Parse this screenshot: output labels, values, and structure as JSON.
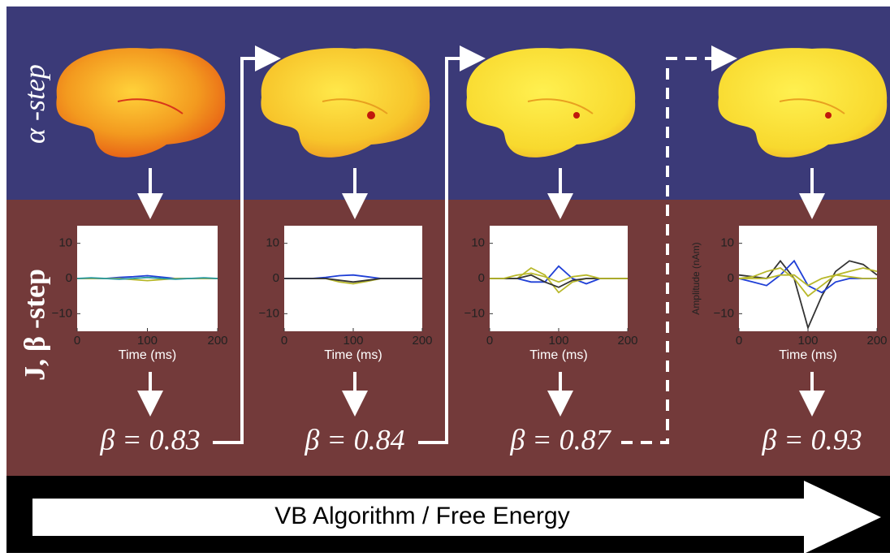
{
  "row_labels": {
    "alpha": "α -step",
    "j_beta": "J, β -step"
  },
  "panels": [
    {
      "beta_label": "β = 0.83",
      "plot": {
        "xlim": [
          0,
          200
        ],
        "ylim": [
          -15,
          15
        ],
        "xticks": [
          0,
          100,
          200
        ],
        "yticks": [
          {
            "value": -10,
            "label": "−10"
          },
          0,
          10
        ],
        "xlabel": "Time (ms)",
        "x": [
          0,
          20,
          40,
          60,
          80,
          100,
          120,
          140,
          160,
          180,
          200
        ],
        "series": [
          {
            "color": "#1f3fd6",
            "values": [
              0,
              0,
              0,
              0.3,
              0.5,
              0.8,
              0.4,
              0,
              0,
              0,
              0
            ]
          },
          {
            "color": "#b8b82a",
            "values": [
              0,
              0,
              0,
              0,
              -0.3,
              -0.6,
              -0.3,
              0,
              0,
              0,
              0
            ]
          },
          {
            "color": "#2a9aa0",
            "values": [
              0,
              0.2,
              0,
              -0.2,
              0,
              0.3,
              0,
              -0.2,
              0,
              0.2,
              0
            ]
          }
        ]
      }
    },
    {
      "beta_label": "β = 0.84",
      "plot": {
        "xlim": [
          0,
          200
        ],
        "ylim": [
          -15,
          15
        ],
        "xticks": [
          0,
          100,
          200
        ],
        "yticks": [
          {
            "value": -10,
            "label": "−10"
          },
          0,
          10
        ],
        "xlabel": "Time (ms)",
        "x": [
          0,
          20,
          40,
          60,
          80,
          100,
          120,
          140,
          160,
          180,
          200
        ],
        "series": [
          {
            "color": "#b8b82a",
            "values": [
              0,
              0,
              0,
              0,
              -1,
              -1.5,
              -0.8,
              0,
              0,
              0,
              0
            ]
          },
          {
            "color": "#1f3fd6",
            "values": [
              0,
              0,
              0,
              0.3,
              0.8,
              1,
              0.5,
              0,
              0,
              0,
              0
            ]
          },
          {
            "color": "#333333",
            "values": [
              0,
              0,
              0,
              0,
              -0.5,
              -1,
              -0.5,
              0,
              0,
              0,
              0
            ]
          }
        ]
      }
    },
    {
      "beta_label": "β = 0.87",
      "plot": {
        "xlim": [
          0,
          200
        ],
        "ylim": [
          -15,
          15
        ],
        "xticks": [
          0,
          100,
          200
        ],
        "yticks": [
          {
            "value": -10,
            "label": "−10"
          },
          0,
          10
        ],
        "xlabel": "Time (ms)",
        "x": [
          0,
          20,
          40,
          60,
          80,
          100,
          120,
          140,
          160,
          180,
          200
        ],
        "series": [
          {
            "color": "#1f3fd6",
            "values": [
              0,
              0,
              0,
              -1,
              -1,
              3.5,
              0,
              -1.5,
              0,
              0,
              0
            ]
          },
          {
            "color": "#b8b82a",
            "values": [
              0,
              0,
              0,
              3,
              1,
              -4,
              -1,
              0,
              0,
              0,
              0
            ]
          },
          {
            "color": "#333333",
            "values": [
              0,
              0,
              0,
              1,
              -1,
              -2.5,
              -0.5,
              0,
              0,
              0,
              0
            ]
          },
          {
            "color": "#b8b82a",
            "values": [
              0,
              0,
              1,
              1.5,
              0.5,
              -1,
              0.5,
              1,
              0,
              0,
              0
            ]
          }
        ]
      }
    },
    {
      "beta_label": "β = 0.93",
      "plot": {
        "xlim": [
          0,
          200
        ],
        "ylim": [
          -15,
          15
        ],
        "xticks": [
          0,
          100,
          200
        ],
        "yticks": [
          {
            "value": -10,
            "label": "−10"
          },
          0,
          10
        ],
        "xlabel": "Time (ms)",
        "ylabel": "Amplitude (nAm)",
        "x": [
          0,
          20,
          40,
          60,
          80,
          100,
          120,
          140,
          160,
          180,
          200
        ],
        "series": [
          {
            "color": "#333333",
            "values": [
              1,
              0.5,
              0,
              5,
              0,
              -14,
              -5,
              2,
              5,
              4,
              1
            ]
          },
          {
            "color": "#1f3fd6",
            "values": [
              0,
              -1,
              -2,
              1,
              5,
              -2,
              -4,
              -1,
              0,
              0,
              0
            ]
          },
          {
            "color": "#b8b82a",
            "values": [
              0,
              0.5,
              2,
              3,
              0,
              -5,
              -2,
              1,
              2,
              3,
              2
            ]
          },
          {
            "color": "#b8b82a",
            "values": [
              0,
              0,
              0,
              1,
              1,
              -2,
              0,
              1,
              0.5,
              0,
              0
            ]
          }
        ]
      }
    }
  ],
  "footer": "VB Algorithm / Free Energy"
}
